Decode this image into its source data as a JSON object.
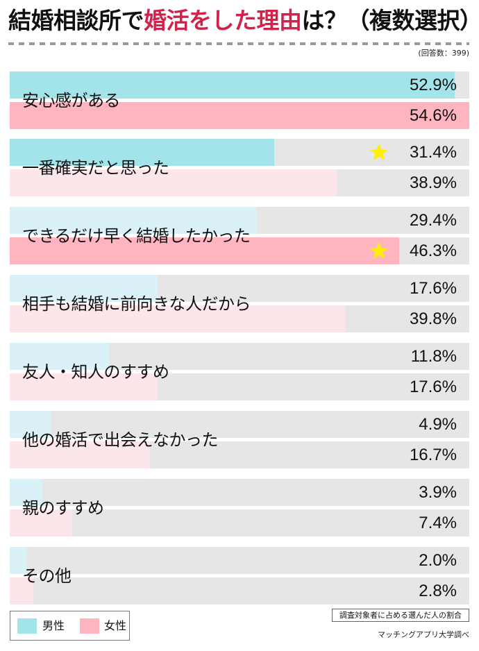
{
  "title": {
    "prefix": "結婚相談所で",
    "accent": "婚活をした理由",
    "suffix": "は？（複数選択）"
  },
  "respondents": "(回答数：399)",
  "legend": {
    "male": "男性",
    "female": "女性"
  },
  "note": "調査対象者に占める選んだ人の割合",
  "source": "マッチングアプリ大学調べ",
  "colors": {
    "male_highlight": "#A3E3EA",
    "female_highlight": "#FFB5C0",
    "male_pale": "#DAF1F7",
    "female_pale": "#FDE6EA",
    "track": "#E6E6E6",
    "accent": "#D0234B",
    "star": "#FFF000"
  },
  "chart_data": {
    "type": "bar",
    "orientation": "horizontal",
    "title": "結婚相談所で婚活をした理由は？（複数選択）",
    "subtitle": "(回答数：399)",
    "xlabel": "調査対象者に占める選んだ人の割合",
    "ylabel": "",
    "unit": "%",
    "xlim": [
      0,
      54.6
    ],
    "legend_position": "bottom-left",
    "categories": [
      "安心感がある",
      "一番確実だと思った",
      "できるだけ早く結婚したかった",
      "相手も結婚に前向きな人だから",
      "友人・知人のすすめ",
      "他の婚活で出会えなかった",
      "親のすすめ",
      "その他"
    ],
    "series": [
      {
        "name": "男性",
        "values": [
          52.9,
          31.4,
          29.4,
          17.6,
          11.8,
          4.9,
          3.9,
          2.0
        ]
      },
      {
        "name": "女性",
        "values": [
          54.6,
          38.9,
          46.3,
          39.8,
          17.6,
          16.7,
          7.4,
          2.8
        ]
      }
    ],
    "annotations": [
      {
        "category": "一番確実だと思った",
        "series": "男性",
        "marker": "star"
      },
      {
        "category": "できるだけ早く結婚したかった",
        "series": "女性",
        "marker": "star"
      }
    ],
    "source": "マッチングアプリ大学調べ"
  },
  "rows": [
    {
      "label": "安心感がある",
      "male": {
        "value": 52.9,
        "text": "52.9%",
        "hl": true,
        "star": false
      },
      "female": {
        "value": 54.6,
        "text": "54.6%",
        "hl": true,
        "star": false
      }
    },
    {
      "label": "一番確実だと思った",
      "male": {
        "value": 31.4,
        "text": "31.4%",
        "hl": true,
        "star": true
      },
      "female": {
        "value": 38.9,
        "text": "38.9%",
        "hl": false,
        "star": false
      }
    },
    {
      "label": "できるだけ早く結婚したかった",
      "male": {
        "value": 29.4,
        "text": "29.4%",
        "hl": false,
        "star": false
      },
      "female": {
        "value": 46.3,
        "text": "46.3%",
        "hl": true,
        "star": true
      }
    },
    {
      "label": "相手も結婚に前向きな人だから",
      "male": {
        "value": 17.6,
        "text": "17.6%",
        "hl": false,
        "star": false
      },
      "female": {
        "value": 39.8,
        "text": "39.8%",
        "hl": false,
        "star": false
      }
    },
    {
      "label": "友人・知人のすすめ",
      "male": {
        "value": 11.8,
        "text": "11.8%",
        "hl": false,
        "star": false
      },
      "female": {
        "value": 17.6,
        "text": "17.6%",
        "hl": false,
        "star": false
      }
    },
    {
      "label": "他の婚活で出会えなかった",
      "male": {
        "value": 4.9,
        "text": "4.9%",
        "hl": false,
        "star": false
      },
      "female": {
        "value": 16.7,
        "text": "16.7%",
        "hl": false,
        "star": false
      }
    },
    {
      "label": "親のすすめ",
      "male": {
        "value": 3.9,
        "text": "3.9%",
        "hl": false,
        "star": false
      },
      "female": {
        "value": 7.4,
        "text": "7.4%",
        "hl": false,
        "star": false
      }
    },
    {
      "label": "その他",
      "male": {
        "value": 2.0,
        "text": "2.0%",
        "hl": false,
        "star": false
      },
      "female": {
        "value": 2.8,
        "text": "2.8%",
        "hl": false,
        "star": false
      }
    }
  ],
  "scale_max": 54.6
}
